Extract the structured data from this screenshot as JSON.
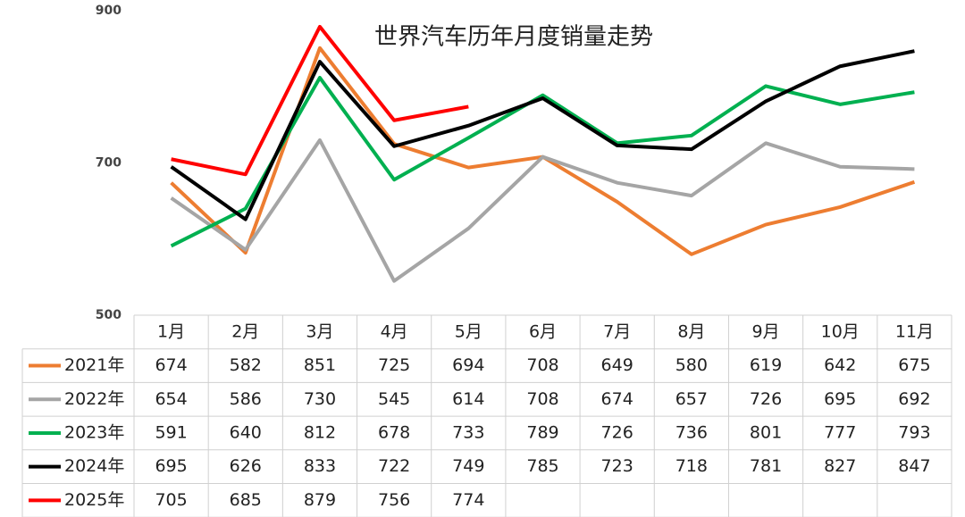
{
  "chart_data": {
    "type": "line",
    "title": "世界汽车历年月度销量走势",
    "categories": [
      "1月",
      "2月",
      "3月",
      "4月",
      "5月",
      "6月",
      "7月",
      "8月",
      "9月",
      "10月",
      "11月"
    ],
    "ylim": [
      500,
      900
    ],
    "yticks": [
      500,
      700,
      900
    ],
    "series": [
      {
        "name": "2021年",
        "color": "#ed7d31",
        "values": [
          674,
          582,
          851,
          725,
          694,
          708,
          649,
          580,
          619,
          642,
          675
        ]
      },
      {
        "name": "2022年",
        "color": "#a5a5a5",
        "values": [
          654,
          586,
          730,
          545,
          614,
          708,
          674,
          657,
          726,
          695,
          692
        ]
      },
      {
        "name": "2023年",
        "color": "#00b050",
        "values": [
          591,
          640,
          812,
          678,
          733,
          789,
          726,
          736,
          801,
          777,
          793
        ]
      },
      {
        "name": "2024年",
        "color": "#000000",
        "values": [
          695,
          626,
          833,
          722,
          749,
          785,
          723,
          718,
          781,
          827,
          847
        ]
      },
      {
        "name": "2025年",
        "color": "#ff0000",
        "values": [
          705,
          685,
          879,
          756,
          774,
          null,
          null,
          null,
          null,
          null,
          null
        ]
      }
    ]
  }
}
